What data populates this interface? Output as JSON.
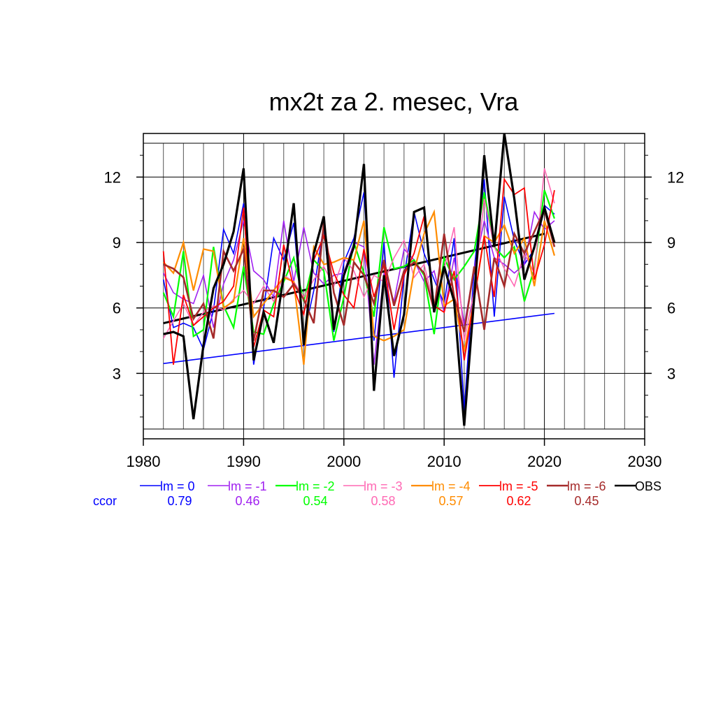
{
  "chart_data": {
    "type": "line",
    "title": "mx2t za 2. mesec, Vra",
    "xlim": [
      1980,
      2030
    ],
    "ylim": [
      0,
      14
    ],
    "x_ticks": [
      1980,
      1990,
      2000,
      2010,
      2020,
      2030
    ],
    "y_ticks": [
      3,
      6,
      9,
      12
    ],
    "x_minor_step": 2,
    "y_minor_step": 1,
    "grid": true,
    "x": [
      1982,
      1983,
      1984,
      1985,
      1986,
      1987,
      1988,
      1989,
      1990,
      1991,
      1992,
      1993,
      1994,
      1995,
      1996,
      1997,
      1998,
      1999,
      2000,
      2001,
      2002,
      2003,
      2004,
      2005,
      2006,
      2007,
      2008,
      2009,
      2010,
      2011,
      2012,
      2013,
      2014,
      2015,
      2016,
      2017,
      2018,
      2019,
      2020,
      2021
    ],
    "series": [
      {
        "name": "lm = 0",
        "color": "#0000ff",
        "width": 1.6,
        "values": [
          7.3,
          5.1,
          5.3,
          5.1,
          4.1,
          5.9,
          9.6,
          8.5,
          10.8,
          3.4,
          6.0,
          9.2,
          8.2,
          9.9,
          4.7,
          6.8,
          9.8,
          4.9,
          8.1,
          9.2,
          11.3,
          4.5,
          9.0,
          2.8,
          7.4,
          10.4,
          8.5,
          7.3,
          6.2,
          9.2,
          1.3,
          7.8,
          11.9,
          5.6,
          11.1,
          9.1,
          8.0,
          8.7,
          10.7,
          10.3
        ]
      },
      {
        "name": "lm = -1",
        "color": "#a020f0",
        "width": 1.6,
        "values": [
          7.6,
          6.7,
          6.4,
          6.2,
          7.5,
          5.1,
          7.1,
          8.2,
          10.0,
          7.7,
          7.3,
          6.5,
          10.0,
          7.2,
          9.7,
          7.6,
          7.1,
          7.5,
          7.6,
          9.0,
          8.8,
          3.4,
          7.6,
          6.3,
          8.7,
          8.2,
          7.2,
          7.7,
          5.8,
          8.3,
          5.2,
          7.8,
          10.0,
          8.3,
          8.0,
          7.6,
          8.0,
          10.4,
          9.6,
          10.0
        ]
      },
      {
        "name": "lm = -2",
        "color": "#00ff00",
        "width": 2.2,
        "values": [
          6.7,
          5.6,
          8.6,
          4.7,
          5.0,
          8.8,
          6.1,
          5.1,
          7.9,
          4.9,
          4.8,
          6.2,
          7.2,
          8.3,
          6.3,
          8.2,
          7.7,
          4.5,
          6.5,
          9.0,
          7.6,
          5.6,
          9.7,
          7.8,
          7.9,
          8.2,
          7.5,
          4.8,
          8.3,
          7.3,
          7.9,
          8.6,
          11.3,
          8.8,
          8.3,
          8.8,
          6.3,
          7.8,
          11.4,
          10.1
        ]
      },
      {
        "name": "lm = -3",
        "color": "#ff69b4",
        "width": 1.6,
        "values": [
          4.6,
          5.4,
          6.2,
          5.2,
          5.8,
          6.1,
          5.9,
          6.4,
          6.8,
          6.2,
          7.0,
          6.3,
          7.5,
          7.2,
          6.5,
          7.3,
          7.9,
          7.0,
          8.3,
          7.7,
          6.5,
          7.5,
          7.2,
          8.3,
          9.1,
          7.4,
          8.0,
          6.1,
          7.8,
          9.7,
          4.5,
          6.8,
          11.0,
          8.8,
          7.8,
          7.0,
          8.5,
          7.6,
          12.4,
          10.8
        ]
      },
      {
        "name": "lm = -4",
        "color": "#ff8c00",
        "width": 2.2,
        "values": [
          8.1,
          7.6,
          9.0,
          6.8,
          8.7,
          8.6,
          6.0,
          6.3,
          9.2,
          5.6,
          6.2,
          6.8,
          7.4,
          7.2,
          3.4,
          8.8,
          8.0,
          8.1,
          8.3,
          8.2,
          10.0,
          4.7,
          4.5,
          4.7,
          5.0,
          7.7,
          9.4,
          10.4,
          6.1,
          6.4,
          4.0,
          6.4,
          9.3,
          9.0,
          9.8,
          8.5,
          9.2,
          7.0,
          10.0,
          8.4
        ]
      },
      {
        "name": "lm = -5",
        "color": "#ff0000",
        "width": 1.8,
        "values": [
          8.6,
          3.4,
          6.6,
          5.2,
          5.6,
          6.0,
          6.3,
          7.0,
          10.6,
          4.2,
          5.9,
          5.6,
          8.9,
          6.9,
          5.7,
          8.2,
          9.3,
          7.6,
          6.6,
          6.0,
          8.7,
          6.5,
          8.0,
          5.0,
          7.5,
          8.5,
          10.2,
          6.1,
          5.8,
          7.7,
          3.6,
          6.4,
          9.3,
          6.5,
          11.9,
          11.2,
          11.5,
          7.3,
          8.9,
          11.4
        ]
      },
      {
        "name": "lm = -6",
        "color": "#a52a2a",
        "width": 2.6,
        "values": [
          8.0,
          7.8,
          7.4,
          5.5,
          6.2,
          4.6,
          8.6,
          7.7,
          8.7,
          4.5,
          6.8,
          6.8,
          6.5,
          7.1,
          6.4,
          5.3,
          9.9,
          6.7,
          5.2,
          8.1,
          7.5,
          6.2,
          8.2,
          6.1,
          7.7,
          8.1,
          7.6,
          5.9,
          9.4,
          6.5,
          4.9,
          7.9,
          5.0,
          8.3,
          7.0,
          9.4,
          8.5,
          9.5,
          10.5,
          8.8
        ]
      },
      {
        "name": "OBS",
        "color": "#000000",
        "width": 3.2,
        "values": [
          4.8,
          4.9,
          4.7,
          0.9,
          4.3,
          6.9,
          8.0,
          9.5,
          12.4,
          3.6,
          5.8,
          4.4,
          7.5,
          10.8,
          4.3,
          8.5,
          10.2,
          5.0,
          7.5,
          8.8,
          12.6,
          2.2,
          7.5,
          3.8,
          5.7,
          10.4,
          10.6,
          5.8,
          7.9,
          6.3,
          0.6,
          6.5,
          13.0,
          8.8,
          14.0,
          11.0,
          7.3,
          8.8,
          10.6,
          9.0
        ]
      }
    ],
    "trend_lines": [
      {
        "color": "#0000ff",
        "width": 1.6,
        "x": [
          1982,
          2021
        ],
        "y": [
          3.45,
          5.75
        ]
      },
      {
        "color": "#000000",
        "width": 3.0,
        "x": [
          1982,
          2020
        ],
        "y": [
          5.3,
          9.4
        ]
      }
    ],
    "legend_position": "bottom",
    "correlation_label": "ccor",
    "correlations": [
      "0.79",
      "0.46",
      "0.54",
      "0.58",
      "0.57",
      "0.62",
      "0.45"
    ]
  }
}
